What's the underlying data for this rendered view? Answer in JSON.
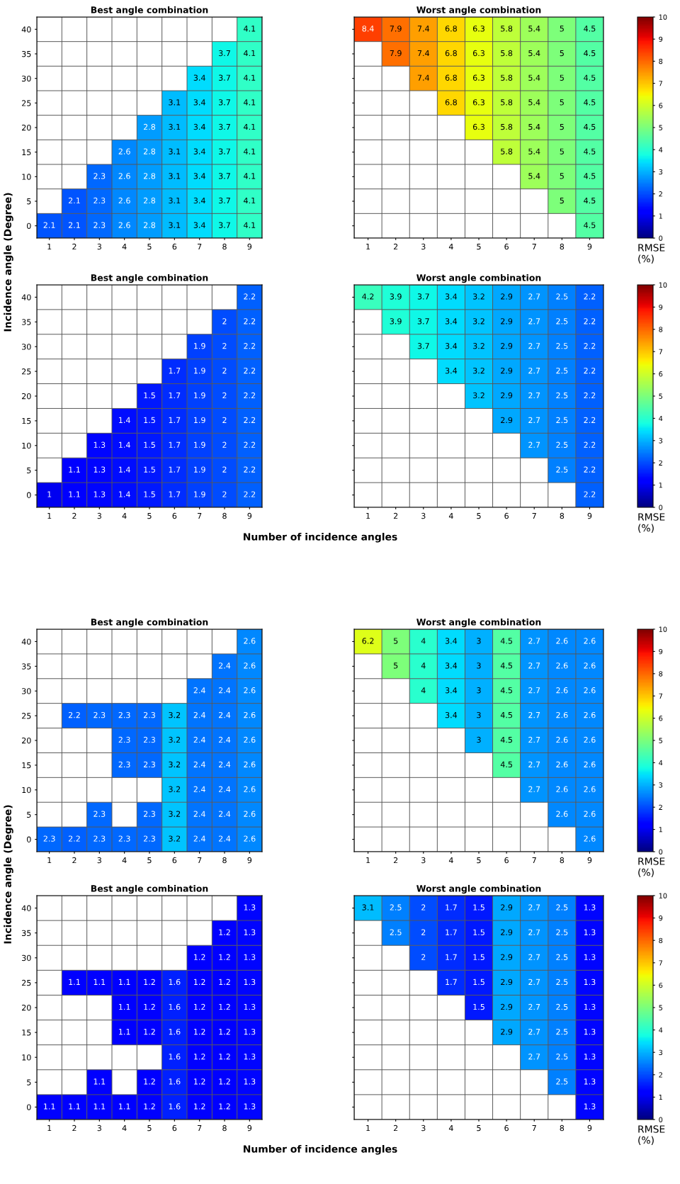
{
  "chart_data": [
    {
      "type": "heatmap",
      "title": "Best angle combination",
      "ylabel": "Incidence angle (Degree)",
      "grid": true,
      "data_labels": true,
      "categories": [
        "1",
        "2",
        "3",
        "4",
        "5",
        "6",
        "7",
        "8",
        "9"
      ],
      "y_categories": [
        "40",
        "35",
        "30",
        "25",
        "20",
        "15",
        "10",
        "5",
        "0"
      ],
      "cells": [
        [
          null,
          null,
          null,
          null,
          null,
          null,
          null,
          null,
          4.1
        ],
        [
          null,
          null,
          null,
          null,
          null,
          null,
          null,
          3.7,
          4.1
        ],
        [
          null,
          null,
          null,
          null,
          null,
          null,
          3.4,
          3.7,
          4.1
        ],
        [
          null,
          null,
          null,
          null,
          null,
          3.1,
          3.4,
          3.7,
          4.1
        ],
        [
          null,
          null,
          null,
          null,
          2.8,
          3.1,
          3.4,
          3.7,
          4.1
        ],
        [
          null,
          null,
          null,
          2.6,
          2.8,
          3.1,
          3.4,
          3.7,
          4.1
        ],
        [
          null,
          null,
          2.3,
          2.6,
          2.8,
          3.1,
          3.4,
          3.7,
          4.1
        ],
        [
          null,
          2.1,
          2.3,
          2.6,
          2.8,
          3.1,
          3.4,
          3.7,
          4.1
        ],
        [
          2.1,
          2.1,
          2.3,
          2.6,
          2.8,
          3.1,
          3.4,
          3.7,
          4.1
        ]
      ]
    },
    {
      "type": "heatmap",
      "title": "Worst angle combination",
      "grid": true,
      "clim": [
        0,
        10
      ],
      "cticks": [
        0,
        1,
        2,
        3,
        4,
        5,
        6,
        7,
        8,
        9,
        10
      ],
      "clabel": "RMSE (%)",
      "tick_labels": "x",
      "categories": [
        "1",
        "2",
        "3",
        "4",
        "5",
        "6",
        "7",
        "8",
        "9"
      ],
      "y_categories": [
        "40",
        "35",
        "30",
        "25",
        "20",
        "15",
        "10",
        "5",
        "0"
      ],
      "data_labels": true,
      "cells": [
        [
          8.4,
          7.9,
          7.4,
          6.8,
          6.3,
          5.8,
          5.4,
          5,
          4.5
        ],
        [
          null,
          7.9,
          7.4,
          6.8,
          6.3,
          5.8,
          5.4,
          5,
          4.5
        ],
        [
          null,
          null,
          7.4,
          6.8,
          6.3,
          5.8,
          5.4,
          5,
          4.5
        ],
        [
          null,
          null,
          null,
          6.8,
          6.3,
          5.8,
          5.4,
          5,
          4.5
        ],
        [
          null,
          null,
          null,
          null,
          6.3,
          5.8,
          5.4,
          5,
          4.5
        ],
        [
          null,
          null,
          null,
          null,
          null,
          5.8,
          5.4,
          5,
          4.5
        ],
        [
          null,
          null,
          null,
          null,
          null,
          null,
          5.4,
          5,
          4.5
        ],
        [
          null,
          null,
          null,
          null,
          null,
          null,
          null,
          5,
          4.5
        ],
        [
          null,
          null,
          null,
          null,
          null,
          null,
          null,
          null,
          4.5
        ]
      ]
    },
    {
      "type": "heatmap",
      "title": "Best angle combination",
      "xlabel": "Number of incidence angles",
      "grid": true,
      "data_labels": true,
      "categories": [
        "1",
        "2",
        "3",
        "4",
        "5",
        "6",
        "7",
        "8",
        "9"
      ],
      "y_categories": [
        "40",
        "35",
        "30",
        "25",
        "20",
        "15",
        "10",
        "5",
        "0"
      ],
      "cells": [
        [
          null,
          null,
          null,
          null,
          null,
          null,
          null,
          null,
          2.2
        ],
        [
          null,
          null,
          null,
          null,
          null,
          null,
          null,
          2,
          2.2
        ],
        [
          null,
          null,
          null,
          null,
          null,
          null,
          1.9,
          2,
          2.2
        ],
        [
          null,
          null,
          null,
          null,
          null,
          1.7,
          1.9,
          2,
          2.2
        ],
        [
          null,
          null,
          null,
          null,
          1.5,
          1.7,
          1.9,
          2,
          2.2
        ],
        [
          null,
          null,
          null,
          1.4,
          1.5,
          1.7,
          1.9,
          2,
          2.2
        ],
        [
          null,
          null,
          1.3,
          1.4,
          1.5,
          1.7,
          1.9,
          2,
          2.2
        ],
        [
          null,
          1.1,
          1.3,
          1.4,
          1.5,
          1.7,
          1.9,
          2,
          2.2
        ],
        [
          1,
          1.1,
          1.3,
          1.4,
          1.5,
          1.7,
          1.9,
          2,
          2.2
        ]
      ]
    },
    {
      "type": "heatmap",
      "title": "Worst angle combination",
      "grid": true,
      "clim": [
        0,
        10
      ],
      "cticks": [
        0,
        1,
        2,
        3,
        4,
        5,
        6,
        7,
        8,
        9,
        10
      ],
      "clabel": "RMSE (%)",
      "tick_labels": "x",
      "categories": [
        "1",
        "2",
        "3",
        "4",
        "5",
        "6",
        "7",
        "8",
        "9"
      ],
      "y_categories": [
        "40",
        "35",
        "30",
        "25",
        "20",
        "15",
        "10",
        "5",
        "0"
      ],
      "data_labels": true,
      "cells": [
        [
          4.2,
          3.9,
          3.7,
          3.4,
          3.2,
          2.9,
          2.7,
          2.5,
          2.2
        ],
        [
          null,
          3.9,
          3.7,
          3.4,
          3.2,
          2.9,
          2.7,
          2.5,
          2.2
        ],
        [
          null,
          null,
          3.7,
          3.4,
          3.2,
          2.9,
          2.7,
          2.5,
          2.2
        ],
        [
          null,
          null,
          null,
          3.4,
          3.2,
          2.9,
          2.7,
          2.5,
          2.2
        ],
        [
          null,
          null,
          null,
          null,
          3.2,
          2.9,
          2.7,
          2.5,
          2.2
        ],
        [
          null,
          null,
          null,
          null,
          null,
          2.9,
          2.7,
          2.5,
          2.2
        ],
        [
          null,
          null,
          null,
          null,
          null,
          null,
          2.7,
          2.5,
          2.2
        ],
        [
          null,
          null,
          null,
          null,
          null,
          null,
          null,
          2.5,
          2.2
        ],
        [
          null,
          null,
          null,
          null,
          null,
          null,
          null,
          null,
          2.2
        ]
      ]
    },
    {
      "type": "heatmap",
      "title": "Best angle combination",
      "ylabel": "Incidence angle (Degree)",
      "grid": true,
      "data_labels": true,
      "categories": [
        "1",
        "2",
        "3",
        "4",
        "5",
        "6",
        "7",
        "8",
        "9"
      ],
      "y_categories": [
        "40",
        "35",
        "30",
        "25",
        "20",
        "15",
        "10",
        "5",
        "0"
      ],
      "cells": [
        [
          null,
          null,
          null,
          null,
          null,
          null,
          null,
          null,
          2.6
        ],
        [
          null,
          null,
          null,
          null,
          null,
          null,
          null,
          2.4,
          2.6
        ],
        [
          null,
          null,
          null,
          null,
          null,
          null,
          2.4,
          2.4,
          2.6
        ],
        [
          null,
          2.2,
          2.3,
          2.3,
          2.3,
          3.2,
          2.4,
          2.4,
          2.6
        ],
        [
          null,
          null,
          null,
          2.3,
          2.3,
          3.2,
          2.4,
          2.4,
          2.6
        ],
        [
          null,
          null,
          null,
          2.3,
          2.3,
          3.2,
          2.4,
          2.4,
          2.6
        ],
        [
          null,
          null,
          null,
          null,
          null,
          3.2,
          2.4,
          2.4,
          2.6
        ],
        [
          null,
          null,
          2.3,
          null,
          2.3,
          3.2,
          2.4,
          2.4,
          2.6
        ],
        [
          2.3,
          2.2,
          2.3,
          2.3,
          2.3,
          3.2,
          2.4,
          2.4,
          2.6
        ]
      ]
    },
    {
      "type": "heatmap",
      "title": "Worst angle combination",
      "grid": true,
      "clim": [
        0,
        10
      ],
      "cticks": [
        0,
        1,
        2,
        3,
        4,
        5,
        6,
        7,
        8,
        9,
        10
      ],
      "clabel": "RMSE (%)",
      "tick_labels": "x",
      "categories": [
        "1",
        "2",
        "3",
        "4",
        "5",
        "6",
        "7",
        "8",
        "9"
      ],
      "y_categories": [
        "40",
        "35",
        "30",
        "25",
        "20",
        "15",
        "10",
        "5",
        "0"
      ],
      "data_labels": true,
      "cells": [
        [
          6.2,
          5,
          4,
          3.4,
          3,
          4.5,
          2.7,
          2.6,
          2.6
        ],
        [
          null,
          5,
          4,
          3.4,
          3,
          4.5,
          2.7,
          2.6,
          2.6
        ],
        [
          null,
          null,
          4,
          3.4,
          3,
          4.5,
          2.7,
          2.6,
          2.6
        ],
        [
          null,
          null,
          null,
          3.4,
          3,
          4.5,
          2.7,
          2.6,
          2.6
        ],
        [
          null,
          null,
          null,
          null,
          3,
          4.5,
          2.7,
          2.6,
          2.6
        ],
        [
          null,
          null,
          null,
          null,
          null,
          4.5,
          2.7,
          2.6,
          2.6
        ],
        [
          null,
          null,
          null,
          null,
          null,
          null,
          2.7,
          2.6,
          2.6
        ],
        [
          null,
          null,
          null,
          null,
          null,
          null,
          null,
          2.6,
          2.6
        ],
        [
          null,
          null,
          null,
          null,
          null,
          null,
          null,
          null,
          2.6
        ]
      ]
    },
    {
      "type": "heatmap",
      "title": "Best angle combination",
      "xlabel": "Number of incidence angles",
      "grid": true,
      "data_labels": true,
      "categories": [
        "1",
        "2",
        "3",
        "4",
        "5",
        "6",
        "7",
        "8",
        "9"
      ],
      "y_categories": [
        "40",
        "35",
        "30",
        "25",
        "20",
        "15",
        "10",
        "5",
        "0"
      ],
      "cells": [
        [
          null,
          null,
          null,
          null,
          null,
          null,
          null,
          null,
          1.3
        ],
        [
          null,
          null,
          null,
          null,
          null,
          null,
          null,
          1.2,
          1.3
        ],
        [
          null,
          null,
          null,
          null,
          null,
          null,
          1.2,
          1.2,
          1.3
        ],
        [
          null,
          1.1,
          1.1,
          1.1,
          1.2,
          1.6,
          1.2,
          1.2,
          1.3
        ],
        [
          null,
          null,
          null,
          1.1,
          1.2,
          1.6,
          1.2,
          1.2,
          1.3
        ],
        [
          null,
          null,
          null,
          1.1,
          1.2,
          1.6,
          1.2,
          1.2,
          1.3
        ],
        [
          null,
          null,
          null,
          null,
          null,
          1.6,
          1.2,
          1.2,
          1.3
        ],
        [
          null,
          null,
          1.1,
          null,
          1.2,
          1.6,
          1.2,
          1.2,
          1.3
        ],
        [
          1.1,
          1.1,
          1.1,
          1.1,
          1.2,
          1.6,
          1.2,
          1.2,
          1.3
        ]
      ]
    },
    {
      "type": "heatmap",
      "title": "Worst angle combination",
      "grid": true,
      "clim": [
        0,
        10
      ],
      "cticks": [
        0,
        1,
        2,
        3,
        4,
        5,
        6,
        7,
        8,
        9,
        10
      ],
      "clabel": "RMSE (%)",
      "tick_labels": "x",
      "categories": [
        "1",
        "2",
        "3",
        "4",
        "5",
        "6",
        "7",
        "8",
        "9"
      ],
      "y_categories": [
        "40",
        "35",
        "30",
        "25",
        "20",
        "15",
        "10",
        "5",
        "0"
      ],
      "data_labels": true,
      "cells": [
        [
          3.1,
          2.5,
          2,
          1.7,
          1.5,
          2.9,
          2.7,
          2.5,
          1.3
        ],
        [
          null,
          2.5,
          2,
          1.7,
          1.5,
          2.9,
          2.7,
          2.5,
          1.3
        ],
        [
          null,
          null,
          2,
          1.7,
          1.5,
          2.9,
          2.7,
          2.5,
          1.3
        ],
        [
          null,
          null,
          null,
          1.7,
          1.5,
          2.9,
          2.7,
          2.5,
          1.3
        ],
        [
          null,
          null,
          null,
          null,
          1.5,
          2.9,
          2.7,
          2.5,
          1.3
        ],
        [
          null,
          null,
          null,
          null,
          null,
          2.9,
          2.7,
          2.5,
          1.3
        ],
        [
          null,
          null,
          null,
          null,
          null,
          null,
          2.7,
          2.5,
          1.3
        ],
        [
          null,
          null,
          null,
          null,
          null,
          null,
          null,
          2.5,
          1.3
        ],
        [
          null,
          null,
          null,
          null,
          null,
          null,
          null,
          null,
          1.3
        ]
      ]
    }
  ]
}
